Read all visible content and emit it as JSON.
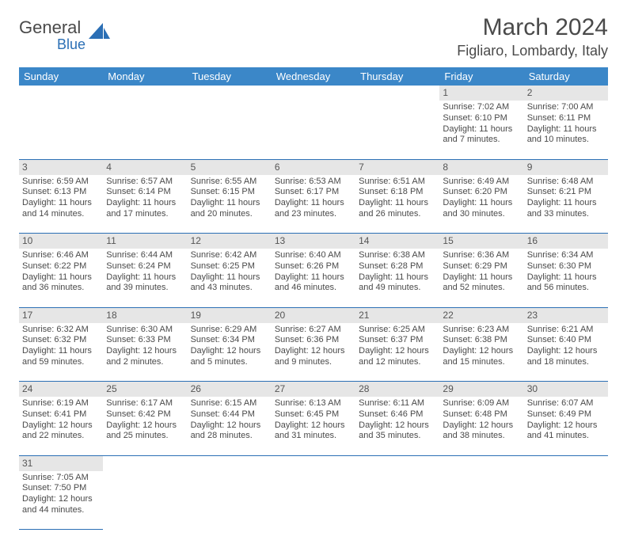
{
  "logo": {
    "text1": "General",
    "text2": "Blue",
    "accent_color": "#2b6fb5"
  },
  "title": "March 2024",
  "location": "Figliaro, Lombardy, Italy",
  "colors": {
    "header_bg": "#3b87c8",
    "header_fg": "#ffffff",
    "daynum_bg": "#e6e6e6",
    "text": "#4a4a4a",
    "rule": "#2b6fb5"
  },
  "day_headers": [
    "Sunday",
    "Monday",
    "Tuesday",
    "Wednesday",
    "Thursday",
    "Friday",
    "Saturday"
  ],
  "weeks": [
    [
      null,
      null,
      null,
      null,
      null,
      {
        "n": "1",
        "sr": "7:02 AM",
        "ss": "6:10 PM",
        "dl": "11 hours and 7 minutes."
      },
      {
        "n": "2",
        "sr": "7:00 AM",
        "ss": "6:11 PM",
        "dl": "11 hours and 10 minutes."
      }
    ],
    [
      {
        "n": "3",
        "sr": "6:59 AM",
        "ss": "6:13 PM",
        "dl": "11 hours and 14 minutes."
      },
      {
        "n": "4",
        "sr": "6:57 AM",
        "ss": "6:14 PM",
        "dl": "11 hours and 17 minutes."
      },
      {
        "n": "5",
        "sr": "6:55 AM",
        "ss": "6:15 PM",
        "dl": "11 hours and 20 minutes."
      },
      {
        "n": "6",
        "sr": "6:53 AM",
        "ss": "6:17 PM",
        "dl": "11 hours and 23 minutes."
      },
      {
        "n": "7",
        "sr": "6:51 AM",
        "ss": "6:18 PM",
        "dl": "11 hours and 26 minutes."
      },
      {
        "n": "8",
        "sr": "6:49 AM",
        "ss": "6:20 PM",
        "dl": "11 hours and 30 minutes."
      },
      {
        "n": "9",
        "sr": "6:48 AM",
        "ss": "6:21 PM",
        "dl": "11 hours and 33 minutes."
      }
    ],
    [
      {
        "n": "10",
        "sr": "6:46 AM",
        "ss": "6:22 PM",
        "dl": "11 hours and 36 minutes."
      },
      {
        "n": "11",
        "sr": "6:44 AM",
        "ss": "6:24 PM",
        "dl": "11 hours and 39 minutes."
      },
      {
        "n": "12",
        "sr": "6:42 AM",
        "ss": "6:25 PM",
        "dl": "11 hours and 43 minutes."
      },
      {
        "n": "13",
        "sr": "6:40 AM",
        "ss": "6:26 PM",
        "dl": "11 hours and 46 minutes."
      },
      {
        "n": "14",
        "sr": "6:38 AM",
        "ss": "6:28 PM",
        "dl": "11 hours and 49 minutes."
      },
      {
        "n": "15",
        "sr": "6:36 AM",
        "ss": "6:29 PM",
        "dl": "11 hours and 52 minutes."
      },
      {
        "n": "16",
        "sr": "6:34 AM",
        "ss": "6:30 PM",
        "dl": "11 hours and 56 minutes."
      }
    ],
    [
      {
        "n": "17",
        "sr": "6:32 AM",
        "ss": "6:32 PM",
        "dl": "11 hours and 59 minutes."
      },
      {
        "n": "18",
        "sr": "6:30 AM",
        "ss": "6:33 PM",
        "dl": "12 hours and 2 minutes."
      },
      {
        "n": "19",
        "sr": "6:29 AM",
        "ss": "6:34 PM",
        "dl": "12 hours and 5 minutes."
      },
      {
        "n": "20",
        "sr": "6:27 AM",
        "ss": "6:36 PM",
        "dl": "12 hours and 9 minutes."
      },
      {
        "n": "21",
        "sr": "6:25 AM",
        "ss": "6:37 PM",
        "dl": "12 hours and 12 minutes."
      },
      {
        "n": "22",
        "sr": "6:23 AM",
        "ss": "6:38 PM",
        "dl": "12 hours and 15 minutes."
      },
      {
        "n": "23",
        "sr": "6:21 AM",
        "ss": "6:40 PM",
        "dl": "12 hours and 18 minutes."
      }
    ],
    [
      {
        "n": "24",
        "sr": "6:19 AM",
        "ss": "6:41 PM",
        "dl": "12 hours and 22 minutes."
      },
      {
        "n": "25",
        "sr": "6:17 AM",
        "ss": "6:42 PM",
        "dl": "12 hours and 25 minutes."
      },
      {
        "n": "26",
        "sr": "6:15 AM",
        "ss": "6:44 PM",
        "dl": "12 hours and 28 minutes."
      },
      {
        "n": "27",
        "sr": "6:13 AM",
        "ss": "6:45 PM",
        "dl": "12 hours and 31 minutes."
      },
      {
        "n": "28",
        "sr": "6:11 AM",
        "ss": "6:46 PM",
        "dl": "12 hours and 35 minutes."
      },
      {
        "n": "29",
        "sr": "6:09 AM",
        "ss": "6:48 PM",
        "dl": "12 hours and 38 minutes."
      },
      {
        "n": "30",
        "sr": "6:07 AM",
        "ss": "6:49 PM",
        "dl": "12 hours and 41 minutes."
      }
    ],
    [
      {
        "n": "31",
        "sr": "7:05 AM",
        "ss": "7:50 PM",
        "dl": "12 hours and 44 minutes."
      },
      null,
      null,
      null,
      null,
      null,
      null
    ]
  ],
  "labels": {
    "sunrise": "Sunrise:",
    "sunset": "Sunset:",
    "daylight": "Daylight:"
  }
}
